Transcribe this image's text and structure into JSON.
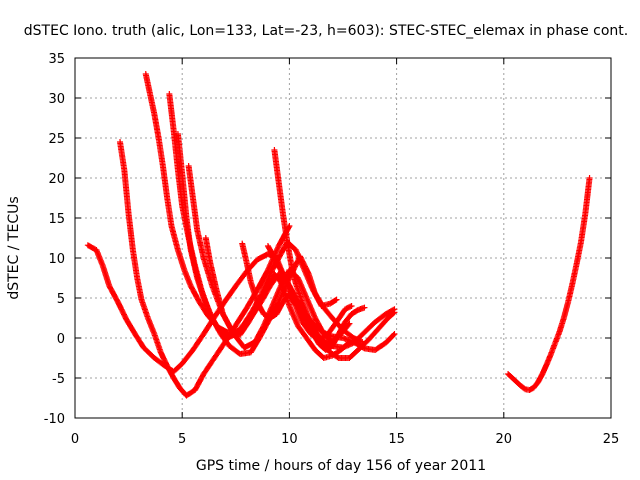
{
  "chart_data": {
    "type": "scatter",
    "title": "dSTEC Iono. truth (alic, Lon=133, Lat=-23, h=603): STEC-STEC_elemax in phase cont.",
    "xlabel": "GPS time / hours of day 156 of year 2011",
    "ylabel": "dSTEC  / TECUs",
    "xlim": [
      0,
      25
    ],
    "ylim": [
      -10,
      35
    ],
    "xticks": [
      0,
      5,
      10,
      15,
      20,
      25
    ],
    "yticks": [
      -10,
      -5,
      0,
      5,
      10,
      15,
      20,
      25,
      30,
      35
    ],
    "grid": true,
    "marker": "+",
    "color": "#ff0000",
    "series": [
      {
        "points": [
          [
            0.6,
            11.6
          ],
          [
            1.0,
            11.0
          ],
          [
            1.3,
            9.0
          ],
          [
            1.6,
            6.5
          ],
          [
            2.0,
            4.5
          ],
          [
            2.4,
            2.3
          ],
          [
            2.8,
            0.5
          ],
          [
            3.2,
            -1.2
          ],
          [
            3.7,
            -2.5
          ],
          [
            4.2,
            -3.5
          ],
          [
            4.6,
            -4.2
          ],
          [
            5.0,
            -3.2
          ],
          [
            5.5,
            -1.5
          ],
          [
            6.0,
            0.5
          ],
          [
            6.5,
            2.6
          ],
          [
            7.0,
            4.6
          ],
          [
            7.5,
            6.5
          ],
          [
            8.0,
            8.3
          ],
          [
            8.5,
            9.8
          ],
          [
            9.0,
            10.5
          ],
          [
            9.4,
            10.0
          ],
          [
            9.7,
            8.0
          ],
          [
            10.0,
            6.0
          ],
          [
            10.5,
            3.5
          ],
          [
            11.0,
            1.5
          ],
          [
            11.5,
            -0.2
          ],
          [
            12.0,
            -1.0
          ],
          [
            12.5,
            -1.2
          ],
          [
            13.0,
            -0.6
          ],
          [
            13.5,
            0.7
          ],
          [
            14.0,
            2.0
          ],
          [
            14.5,
            3.0
          ],
          [
            14.9,
            3.6
          ]
        ]
      },
      {
        "points": [
          [
            2.1,
            24.5
          ],
          [
            2.3,
            21.0
          ],
          [
            2.5,
            15.5
          ],
          [
            2.7,
            11.0
          ],
          [
            2.9,
            7.5
          ],
          [
            3.1,
            4.8
          ],
          [
            3.4,
            2.5
          ],
          [
            3.7,
            0.5
          ],
          [
            4.0,
            -1.8
          ],
          [
            4.3,
            -3.5
          ],
          [
            4.6,
            -5.0
          ],
          [
            4.9,
            -6.3
          ],
          [
            5.2,
            -7.2
          ],
          [
            5.6,
            -6.5
          ],
          [
            6.0,
            -4.5
          ],
          [
            6.5,
            -2.5
          ],
          [
            7.0,
            -0.5
          ],
          [
            7.5,
            1.6
          ],
          [
            8.0,
            3.7
          ],
          [
            8.5,
            6.0
          ],
          [
            9.0,
            8.5
          ],
          [
            9.5,
            11.5
          ],
          [
            10.0,
            14.0
          ]
        ]
      },
      {
        "points": [
          [
            3.3,
            33.0
          ],
          [
            3.5,
            30.5
          ],
          [
            3.7,
            28.0
          ],
          [
            3.9,
            25.0
          ],
          [
            4.1,
            21.5
          ],
          [
            4.3,
            17.5
          ],
          [
            4.5,
            14.0
          ],
          [
            4.8,
            11.0
          ],
          [
            5.1,
            8.5
          ],
          [
            5.4,
            6.5
          ],
          [
            5.8,
            4.5
          ],
          [
            6.2,
            2.8
          ],
          [
            6.7,
            1.3
          ],
          [
            7.2,
            0.6
          ],
          [
            7.7,
            1.0
          ],
          [
            8.2,
            2.5
          ],
          [
            8.7,
            4.6
          ],
          [
            9.1,
            6.5
          ],
          [
            9.5,
            8.0
          ],
          [
            9.9,
            7.0
          ],
          [
            10.3,
            5.0
          ],
          [
            10.7,
            3.2
          ],
          [
            11.1,
            1.8
          ],
          [
            11.5,
            0.8
          ],
          [
            12.0,
            0.2
          ],
          [
            12.5,
            0.0
          ],
          [
            13.0,
            -0.5
          ],
          [
            13.5,
            -1.3
          ],
          [
            14.0,
            -1.5
          ],
          [
            14.5,
            -0.6
          ],
          [
            14.9,
            0.5
          ]
        ]
      },
      {
        "points": [
          [
            4.4,
            30.5
          ],
          [
            4.6,
            26.0
          ],
          [
            4.8,
            21.0
          ],
          [
            5.0,
            16.5
          ],
          [
            5.3,
            12.5
          ],
          [
            5.6,
            9.0
          ],
          [
            5.9,
            6.0
          ],
          [
            6.3,
            3.0
          ],
          [
            6.7,
            1.0
          ],
          [
            7.1,
            0.0
          ],
          [
            7.5,
            0.5
          ],
          [
            7.9,
            1.8
          ],
          [
            8.3,
            3.5
          ],
          [
            8.7,
            5.5
          ],
          [
            9.1,
            8.0
          ],
          [
            9.5,
            10.0
          ],
          [
            9.9,
            12.0
          ],
          [
            10.3,
            11.0
          ],
          [
            10.7,
            8.5
          ],
          [
            11.1,
            6.0
          ],
          [
            11.6,
            3.8
          ],
          [
            12.0,
            2.5
          ],
          [
            12.5,
            1.0
          ],
          [
            13.0,
            0.0
          ],
          [
            13.4,
            -0.5
          ]
        ]
      },
      {
        "points": [
          [
            4.8,
            25.5
          ],
          [
            5.0,
            20.5
          ],
          [
            5.2,
            15.0
          ],
          [
            5.4,
            11.0
          ],
          [
            5.7,
            7.5
          ],
          [
            6.0,
            5.0
          ],
          [
            6.4,
            2.5
          ],
          [
            6.8,
            0.5
          ],
          [
            7.2,
            -1.0
          ],
          [
            7.7,
            -2.0
          ],
          [
            8.2,
            -1.8
          ],
          [
            8.6,
            0.0
          ],
          [
            9.0,
            2.0
          ],
          [
            9.5,
            4.5
          ],
          [
            10.0,
            7.5
          ],
          [
            10.5,
            10.2
          ],
          [
            10.9,
            8.0
          ],
          [
            11.2,
            5.5
          ],
          [
            11.5,
            4.0
          ],
          [
            11.9,
            4.3
          ],
          [
            12.2,
            4.8
          ]
        ]
      },
      {
        "points": [
          [
            5.3,
            21.5
          ],
          [
            5.5,
            17.5
          ],
          [
            5.7,
            13.5
          ],
          [
            6.0,
            10.0
          ],
          [
            6.4,
            6.5
          ],
          [
            6.9,
            3.0
          ],
          [
            7.4,
            0.5
          ],
          [
            7.9,
            -1.2
          ],
          [
            8.4,
            -0.5
          ],
          [
            8.8,
            1.5
          ],
          [
            9.2,
            4.0
          ],
          [
            9.6,
            6.5
          ],
          [
            10.0,
            8.5
          ],
          [
            10.4,
            7.5
          ],
          [
            10.8,
            5.0
          ],
          [
            11.2,
            2.5
          ],
          [
            11.6,
            0.5
          ],
          [
            12.0,
            -0.5
          ],
          [
            12.4,
            0.5
          ],
          [
            12.8,
            1.8
          ]
        ]
      },
      {
        "points": [
          [
            6.1,
            12.5
          ],
          [
            6.3,
            9.5
          ],
          [
            6.6,
            6.0
          ],
          [
            6.9,
            3.0
          ],
          [
            7.3,
            1.0
          ],
          [
            7.7,
            0.4
          ],
          [
            8.1,
            2.0
          ],
          [
            8.5,
            4.0
          ],
          [
            8.9,
            6.0
          ],
          [
            9.3,
            8.0
          ],
          [
            9.6,
            7.0
          ],
          [
            10.0,
            4.0
          ],
          [
            10.4,
            1.5
          ],
          [
            10.8,
            0.0
          ],
          [
            11.2,
            -1.5
          ],
          [
            11.6,
            -2.5
          ],
          [
            12.0,
            -2.2
          ],
          [
            12.4,
            -1.5
          ],
          [
            12.8,
            -0.5
          ]
        ]
      },
      {
        "points": [
          [
            7.8,
            11.8
          ],
          [
            8.0,
            9.5
          ],
          [
            8.2,
            7.0
          ],
          [
            8.5,
            4.5
          ],
          [
            8.8,
            3.0
          ],
          [
            9.1,
            2.5
          ],
          [
            9.4,
            3.0
          ],
          [
            9.7,
            4.5
          ],
          [
            10.0,
            5.5
          ],
          [
            10.3,
            4.0
          ],
          [
            10.6,
            2.0
          ],
          [
            11.0,
            0.5
          ],
          [
            11.4,
            -0.2
          ],
          [
            11.8,
            0.5
          ],
          [
            12.2,
            2.0
          ],
          [
            12.6,
            3.6
          ],
          [
            12.9,
            4.0
          ]
        ]
      },
      {
        "points": [
          [
            9.3,
            23.5
          ],
          [
            9.5,
            19.5
          ],
          [
            9.7,
            15.5
          ],
          [
            9.9,
            12.0
          ],
          [
            10.1,
            9.0
          ],
          [
            10.3,
            6.8
          ],
          [
            10.6,
            4.5
          ],
          [
            10.9,
            2.5
          ],
          [
            11.2,
            0.8
          ],
          [
            11.5,
            -0.5
          ],
          [
            11.9,
            -1.8
          ],
          [
            12.3,
            -2.5
          ],
          [
            12.8,
            -2.5
          ],
          [
            13.2,
            -1.5
          ],
          [
            13.7,
            -0.2
          ],
          [
            14.2,
            1.3
          ],
          [
            14.6,
            2.5
          ],
          [
            14.9,
            3.2
          ]
        ]
      },
      {
        "points": [
          [
            9.0,
            11.5
          ],
          [
            9.3,
            10.0
          ],
          [
            9.6,
            8.5
          ],
          [
            9.9,
            7.0
          ],
          [
            10.2,
            5.5
          ],
          [
            10.5,
            3.5
          ],
          [
            10.8,
            2.0
          ],
          [
            11.1,
            0.5
          ],
          [
            11.4,
            -0.8
          ],
          [
            11.7,
            -1.5
          ],
          [
            12.0,
            -1.0
          ],
          [
            12.3,
            0.5
          ],
          [
            12.6,
            2.0
          ],
          [
            12.9,
            3.0
          ],
          [
            13.2,
            3.5
          ],
          [
            13.5,
            3.8
          ]
        ]
      },
      {
        "points": [
          [
            20.2,
            -4.5
          ],
          [
            20.4,
            -5.0
          ],
          [
            20.6,
            -5.5
          ],
          [
            20.8,
            -6.0
          ],
          [
            21.0,
            -6.4
          ],
          [
            21.2,
            -6.5
          ],
          [
            21.4,
            -6.2
          ],
          [
            21.6,
            -5.5
          ],
          [
            21.8,
            -4.5
          ],
          [
            22.0,
            -3.3
          ],
          [
            22.2,
            -2.0
          ],
          [
            22.4,
            -0.6
          ],
          [
            22.6,
            0.8
          ],
          [
            22.8,
            2.5
          ],
          [
            23.0,
            4.5
          ],
          [
            23.2,
            6.8
          ],
          [
            23.4,
            9.3
          ],
          [
            23.6,
            12.0
          ],
          [
            23.8,
            15.5
          ],
          [
            24.0,
            20.0
          ]
        ]
      }
    ]
  }
}
